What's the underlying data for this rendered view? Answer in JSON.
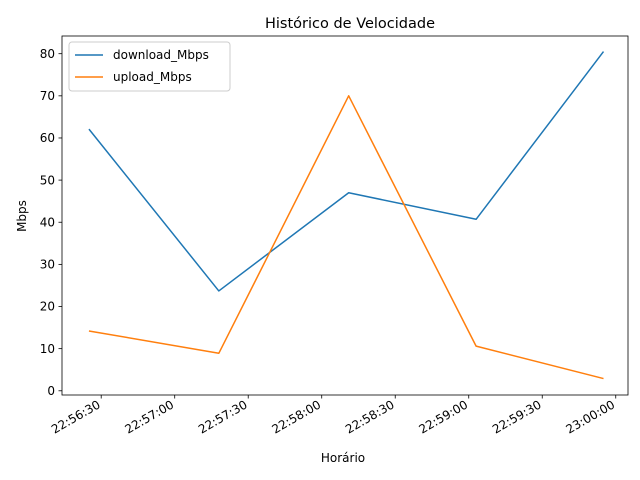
{
  "chart_data": {
    "type": "line",
    "title": "Histórico de Velocidade",
    "xlabel": "Horário",
    "ylabel": "Mbps",
    "x": [
      "22:56:25",
      "22:57:18",
      "22:58:11",
      "22:59:03",
      "22:59:55"
    ],
    "series": [
      {
        "name": "download_Mbps",
        "color": "#1f77b4",
        "values": [
          62.1,
          23.7,
          47.0,
          40.7,
          80.5
        ]
      },
      {
        "name": "upload_Mbps",
        "color": "#ff7f0e",
        "values": [
          14.2,
          8.9,
          70.0,
          10.6,
          2.9
        ]
      }
    ],
    "xlim": [
      "22:56:14",
      "22:60:05"
    ],
    "ylim": [
      -1,
      84.2
    ],
    "x_ticks": [
      "22:56:30",
      "22:57:00",
      "22:57:30",
      "22:58:00",
      "22:58:30",
      "22:59:00",
      "22:59:30",
      "23:00:00"
    ],
    "y_ticks": [
      0,
      10,
      20,
      30,
      40,
      50,
      60,
      70,
      80
    ],
    "grid": false,
    "legend": "upper-left"
  }
}
